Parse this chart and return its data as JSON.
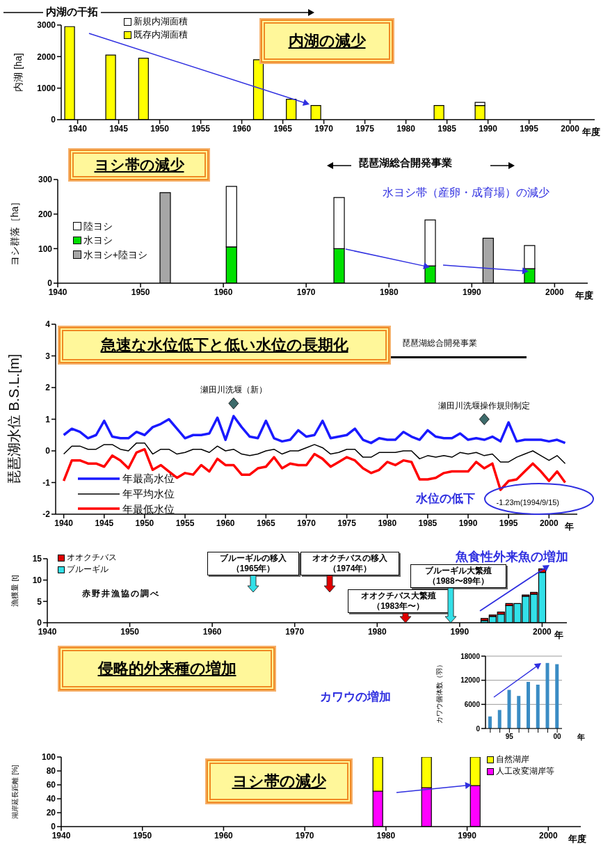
{
  "chart_data": [
    {
      "type": "bar",
      "stacked": true,
      "title": "内湖の減少",
      "ylabel": "内湖 [ha]",
      "xlabel": "年度",
      "annotations": [
        "内湖の干拓"
      ],
      "x": [
        1939,
        1944,
        1948,
        1962,
        1966,
        1969,
        1984,
        1989
      ],
      "series": [
        {
          "name": "既存内湖面積",
          "color": "#ffff00",
          "values": [
            2950,
            2050,
            1950,
            1900,
            650,
            450,
            450,
            450
          ]
        },
        {
          "name": "新規内湖面積",
          "color": "#ffffff",
          "values": [
            null,
            null,
            null,
            null,
            null,
            null,
            null,
            100
          ]
        }
      ],
      "xlim": [
        1938,
        2003
      ],
      "xticks": [
        1940,
        1945,
        1950,
        1955,
        1960,
        1965,
        1970,
        1975,
        1980,
        1985,
        1990,
        1995,
        2000
      ],
      "ylim": [
        0,
        3000
      ],
      "yticks": [
        0,
        1000,
        2000,
        3000
      ],
      "legend": "top left"
    },
    {
      "type": "bar",
      "stacked": true,
      "title": "ヨシ帯の減少",
      "ylabel": "ヨシ群落［ha］",
      "xlabel": "年度",
      "annotations": [
        "琵琶湖総合開発事業",
        "水ヨシ帯（産卵・成育場）の減少"
      ],
      "x": [
        1953,
        1961,
        1974,
        1985,
        1992,
        1997
      ],
      "series": [
        {
          "name": "水ヨシ+陸ヨシ",
          "color": "#a6a6a6",
          "values": [
            262,
            null,
            null,
            null,
            130,
            null
          ]
        },
        {
          "name": "水ヨシ",
          "color": "#00e000",
          "values": [
            null,
            105,
            100,
            50,
            null,
            42
          ]
        },
        {
          "name": "陸ヨシ",
          "color": "#ffffff",
          "values": [
            null,
            175,
            148,
            133,
            null,
            67
          ]
        }
      ],
      "xlim": [
        1940,
        2004
      ],
      "xticks": [
        1940,
        1950,
        1960,
        1970,
        1980,
        1990,
        2000
      ],
      "ylim": [
        0,
        300
      ],
      "yticks": [
        0,
        100,
        200,
        300
      ],
      "legend": "left"
    },
    {
      "type": "line",
      "title": "急速な水位低下と低い水位の長期化",
      "ylabel": "琵琶湖水位 B.S.L.[m]",
      "xlabel": "年",
      "annotations": [
        "琵琶湖総合開発事業",
        {
          "text": "瀬田川洗堰（新）",
          "x": 1961,
          "y": 1.5
        },
        {
          "text": "瀬田川洗堰操作規則制定",
          "x": 1992,
          "y": 1.0
        },
        "水位の低下",
        {
          "text": "-1.23m(1994/9/15)",
          "x": 1994,
          "y": -1.23
        }
      ],
      "x": [
        1940,
        1941,
        1942,
        1943,
        1944,
        1945,
        1946,
        1947,
        1948,
        1949,
        1950,
        1951,
        1952,
        1953,
        1954,
        1955,
        1956,
        1957,
        1958,
        1959,
        1960,
        1961,
        1962,
        1963,
        1964,
        1965,
        1966,
        1967,
        1968,
        1969,
        1970,
        1971,
        1972,
        1973,
        1974,
        1975,
        1976,
        1977,
        1978,
        1979,
        1980,
        1981,
        1982,
        1983,
        1984,
        1985,
        1986,
        1987,
        1988,
        1989,
        1990,
        1991,
        1992,
        1993,
        1994,
        1995,
        1996,
        1997,
        1998,
        1999,
        2000,
        2001,
        2002
      ],
      "series": [
        {
          "name": "年最高水位",
          "color": "#1a1aff",
          "values": [
            0.5,
            0.7,
            0.6,
            0.4,
            0.5,
            0.95,
            0.45,
            0.4,
            0.4,
            0.6,
            0.5,
            0.75,
            0.85,
            1.0,
            0.7,
            0.4,
            0.5,
            0.5,
            0.55,
            1.05,
            0.35,
            1.1,
            0.75,
            0.45,
            0.4,
            0.95,
            0.4,
            0.3,
            0.35,
            0.65,
            0.45,
            0.5,
            0.95,
            0.4,
            0.45,
            0.5,
            0.7,
            0.35,
            0.25,
            0.4,
            0.35,
            0.35,
            0.6,
            0.45,
            0.35,
            0.65,
            0.45,
            0.4,
            0.4,
            0.55,
            0.35,
            0.4,
            0.35,
            0.45,
            0.3,
            0.9,
            0.3,
            0.35,
            0.35,
            0.35,
            0.3,
            0.35,
            0.25
          ]
        },
        {
          "name": "年平均水位",
          "color": "#000000",
          "values": [
            -0.1,
            0.15,
            0.15,
            0.05,
            0.05,
            0.2,
            0.2,
            0.05,
            0.0,
            0.25,
            0.25,
            -0.1,
            0.05,
            0.05,
            -0.1,
            -0.05,
            0.05,
            0.05,
            -0.05,
            0.15,
            0.0,
            0.05,
            -0.1,
            -0.15,
            -0.1,
            0.0,
            0.05,
            -0.1,
            0.0,
            0.0,
            0.1,
            0.2,
            0.1,
            -0.1,
            -0.05,
            0.05,
            0.05,
            -0.2,
            -0.2,
            -0.05,
            -0.05,
            -0.05,
            0.0,
            0.0,
            -0.25,
            -0.15,
            -0.2,
            -0.15,
            -0.2,
            -0.05,
            -0.1,
            -0.05,
            -0.15,
            -0.1,
            -0.35,
            -0.35,
            -0.2,
            -0.1,
            0.0,
            -0.15,
            -0.3,
            -0.15,
            -0.4
          ]
        },
        {
          "name": "年最低水位",
          "color": "#ff0000",
          "values": [
            -0.95,
            -0.3,
            -0.3,
            -0.4,
            -0.4,
            -0.5,
            -0.15,
            -0.3,
            -0.55,
            -0.05,
            0.05,
            -0.6,
            -0.45,
            -0.65,
            -0.85,
            -0.7,
            -0.75,
            -0.45,
            -0.65,
            -0.25,
            -0.45,
            -0.45,
            -0.75,
            -0.75,
            -0.55,
            -0.5,
            -0.2,
            -0.55,
            -0.4,
            -0.45,
            -0.45,
            -0.1,
            -0.25,
            -0.5,
            -0.35,
            -0.2,
            -0.3,
            -0.55,
            -0.7,
            -0.6,
            -0.35,
            -0.45,
            -0.3,
            -0.35,
            -0.9,
            -0.9,
            -0.85,
            -0.7,
            -0.65,
            -0.65,
            -0.65,
            -0.35,
            -0.55,
            -0.4,
            -1.23,
            -0.95,
            -0.9,
            -0.65,
            -0.4,
            -0.65,
            -0.95,
            -0.65,
            -1.0
          ]
        }
      ],
      "xlim": [
        1939,
        2003.5
      ],
      "xticks": [
        1940,
        1945,
        1950,
        1955,
        1960,
        1965,
        1970,
        1975,
        1980,
        1985,
        1990,
        1995,
        2000
      ],
      "ylim": [
        -2,
        4
      ],
      "yticks": [
        -2,
        -1,
        0,
        1,
        2,
        3,
        4
      ],
      "legend": "bottom left"
    },
    {
      "type": "bar",
      "stacked": true,
      "title": "魚食性外来魚の増加",
      "ylabel": "漁獲量 [t]",
      "xlabel": "年",
      "annotations": [
        "赤野井漁協の調べ",
        "ブルーギルの移入（1965年）",
        "オオクチバスの移入（1974年）",
        "オオクチバス大繁殖（1983年〜）",
        "ブルーギル大繁殖（1988〜89年）"
      ],
      "x": [
        1993,
        1994,
        1995,
        1996,
        1997,
        1998,
        1999,
        2000
      ],
      "series": [
        {
          "name": "ブルーギル",
          "color": "#33e0e8",
          "values": [
            0.5,
            1.5,
            2.0,
            4.0,
            4.5,
            6.2,
            6.7,
            11.8
          ]
        },
        {
          "name": "オオクチバス",
          "color": "#e00000",
          "values": [
            0.5,
            0.3,
            0.5,
            0.5,
            null,
            0.3,
            0.4,
            0.8
          ]
        }
      ],
      "xlim": [
        1940,
        2003
      ],
      "xticks": [
        1940,
        1950,
        1960,
        1970,
        1980,
        1990,
        2000
      ],
      "ylim": [
        0,
        15
      ],
      "yticks": [
        0,
        5,
        10,
        15
      ],
      "legend": "top left"
    },
    {
      "type": "other",
      "title": "侵略的外来種の増加"
    },
    {
      "type": "bar",
      "title": "カワウの増加",
      "ylabel": "カワウ個体数（羽）",
      "xlabel": "年",
      "categories": [
        null,
        null,
        "95",
        null,
        null,
        null,
        null,
        "00"
      ],
      "values": [
        3000,
        4600,
        9600,
        8100,
        11600,
        10900,
        16300,
        16000
      ],
      "color": "#3a8cc4",
      "ylim": [
        0,
        18000
      ],
      "yticks": [
        0,
        6000,
        12000,
        18000
      ],
      "grid": "y"
    },
    {
      "type": "bar",
      "stacked": true,
      "title": "ヨシ帯の減少",
      "ylabel": "湖岸延長距離 [%]",
      "xlabel": "年度",
      "x": [
        1979,
        1985,
        1991
      ],
      "series": [
        {
          "name": "人工改変湖岸等",
          "color": "#ff00ff",
          "values": [
            51,
            56,
            59
          ]
        },
        {
          "name": "自然湖岸",
          "color": "#ffff00",
          "values": [
            49,
            44,
            41
          ]
        }
      ],
      "xlim": [
        1940,
        2004
      ],
      "xticks": [
        1940,
        1950,
        1960,
        1970,
        1980,
        1990,
        2000
      ],
      "ylim": [
        0,
        100
      ],
      "yticks": [
        0,
        20,
        40,
        60,
        80,
        100
      ],
      "legend": "right"
    }
  ]
}
